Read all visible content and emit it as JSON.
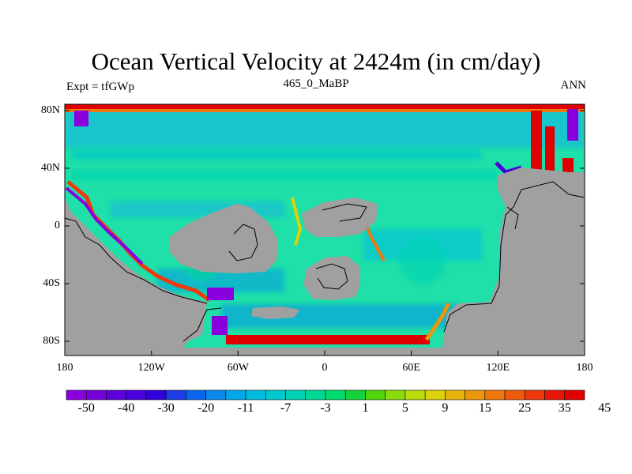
{
  "title": "Ocean Vertical Velocity at 2424m (in cm/day)",
  "left_label": "Expt = tfGWp",
  "center_label": "465_0_MaBP",
  "right_label": "ANN",
  "lat_ticks": [
    "80N",
    "40N",
    "0",
    "40S",
    "80S"
  ],
  "lon_ticks": [
    "180",
    "120W",
    "60W",
    "0",
    "60E",
    "120E",
    "180"
  ],
  "colorbar": {
    "labels": [
      "-50",
      "-40",
      "-30",
      "-20",
      "-11",
      "-7",
      "-3",
      "1",
      "5",
      "9",
      "15",
      "25",
      "35",
      "45"
    ],
    "colors": [
      "#8a00dc",
      "#7400dc",
      "#5e00dc",
      "#4a00dc",
      "#3200dc",
      "#1c3ce6",
      "#0a66ee",
      "#0a8aee",
      "#00a8ea",
      "#00bce0",
      "#00c8cc",
      "#00d2b4",
      "#00d896",
      "#00dc70",
      "#14d23c",
      "#50d40c",
      "#8cdc0c",
      "#b8dc0c",
      "#dcd20c",
      "#e6b40c",
      "#ec960c",
      "#ee780c",
      "#f05a0c",
      "#ee3a0c",
      "#e6180c",
      "#e00000"
    ]
  },
  "colors": {
    "ocean": "#1ee0a8",
    "land": "#a0a0a0",
    "coast_line": "#000000"
  }
}
